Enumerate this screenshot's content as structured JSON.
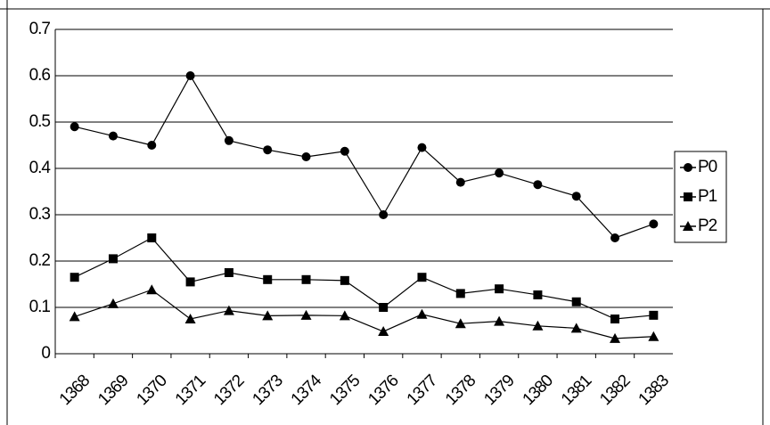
{
  "chart_data": {
    "type": "line",
    "categories": [
      "1368",
      "1369",
      "1370",
      "1371",
      "1372",
      "1373",
      "1374",
      "1375",
      "1376",
      "1377",
      "1378",
      "1379",
      "1380",
      "1381",
      "1382",
      "1383"
    ],
    "series": [
      {
        "name": "P0",
        "color": "#000000",
        "marker": "circle",
        "values": [
          0.49,
          0.47,
          0.45,
          0.6,
          0.46,
          0.44,
          0.425,
          0.437,
          0.3,
          0.445,
          0.37,
          0.39,
          0.365,
          0.34,
          0.25,
          0.28
        ]
      },
      {
        "name": "P1",
        "color": "#000000",
        "marker": "square",
        "values": [
          0.165,
          0.205,
          0.25,
          0.155,
          0.175,
          0.16,
          0.16,
          0.158,
          0.1,
          0.165,
          0.13,
          0.14,
          0.127,
          0.112,
          0.075,
          0.083
        ]
      },
      {
        "name": "P2",
        "color": "#000000",
        "marker": "triangle",
        "values": [
          0.08,
          0.108,
          0.138,
          0.075,
          0.093,
          0.082,
          0.083,
          0.082,
          0.048,
          0.085,
          0.065,
          0.07,
          0.06,
          0.055,
          0.033,
          0.037
        ]
      }
    ],
    "ylim": [
      0,
      0.7
    ],
    "yticks": [
      0,
      0.1,
      0.2,
      0.3,
      0.4,
      0.5,
      0.6,
      0.7
    ],
    "grid": true,
    "legend": "right"
  }
}
